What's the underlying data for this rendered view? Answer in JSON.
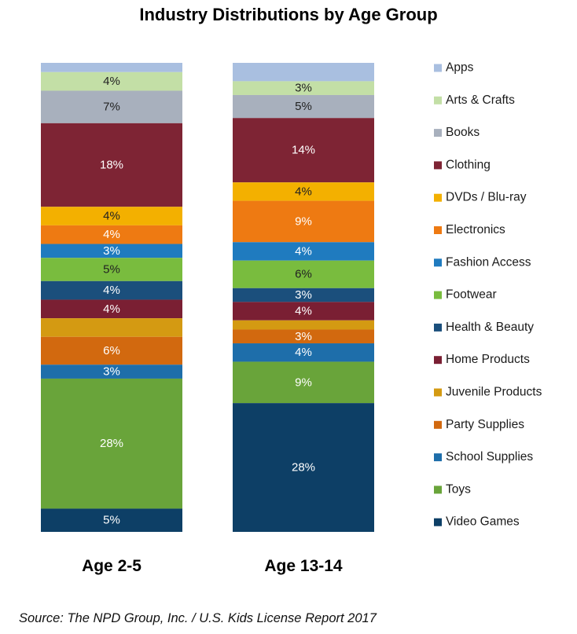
{
  "chart_data": {
    "type": "bar",
    "stacked": true,
    "normalized": true,
    "title": "Industry Distributions by Age Group",
    "categories": [
      "Age 2-5",
      "Age 13-14"
    ],
    "series": [
      {
        "name": "Apps",
        "color": "#a9bfe0",
        "values": [
          2,
          4
        ],
        "labels": [
          "",
          ""
        ]
      },
      {
        "name": "Arts & Crafts",
        "color": "#c3dfa6",
        "values": [
          4,
          3
        ],
        "labels": [
          "4%",
          "3%"
        ]
      },
      {
        "name": "Books",
        "color": "#a8b0bd",
        "values": [
          7,
          5
        ],
        "labels": [
          "7%",
          "5%"
        ]
      },
      {
        "name": "Clothing",
        "color": "#7e2434",
        "values": [
          18,
          14
        ],
        "labels": [
          "18%",
          "14%"
        ]
      },
      {
        "name": "DVDs / Blu-ray",
        "color": "#f3b000",
        "values": [
          4,
          4
        ],
        "labels": [
          "4%",
          "4%"
        ]
      },
      {
        "name": "Electronics",
        "color": "#ee7a12",
        "values": [
          4,
          9
        ],
        "labels": [
          "4%",
          "9%"
        ]
      },
      {
        "name": "Fashion Access",
        "color": "#1f7bbf",
        "values": [
          3,
          4
        ],
        "labels": [
          "3%",
          "4%"
        ]
      },
      {
        "name": "Footwear",
        "color": "#79bc3e",
        "values": [
          5,
          6
        ],
        "labels": [
          "5%",
          "6%"
        ]
      },
      {
        "name": "Health & Beauty",
        "color": "#1b4f7c",
        "values": [
          4,
          3
        ],
        "labels": [
          "4%",
          "3%"
        ]
      },
      {
        "name": "Home Products",
        "color": "#7a1f33",
        "values": [
          4,
          4
        ],
        "labels": [
          "4%",
          "4%"
        ]
      },
      {
        "name": "Juvenile Products",
        "color": "#d49a12",
        "values": [
          4,
          2
        ],
        "labels": [
          "",
          ""
        ]
      },
      {
        "name": "Party Supplies",
        "color": "#d2690f",
        "values": [
          6,
          3
        ],
        "labels": [
          "6%",
          "3%"
        ]
      },
      {
        "name": "School Supplies",
        "color": "#1e6eaa",
        "values": [
          3,
          4
        ],
        "labels": [
          "3%",
          "4%"
        ]
      },
      {
        "name": "Toys",
        "color": "#69a43a",
        "values": [
          28,
          9
        ],
        "labels": [
          "28%",
          "9%"
        ]
      },
      {
        "name": "Video Games",
        "color": "#0d3f66",
        "values": [
          5,
          28
        ],
        "labels": [
          "5%",
          "28%"
        ]
      }
    ],
    "legend": "right",
    "grid": false
  },
  "source": "Source:  The NPD Group, Inc. / U.S. Kids License Report 2017"
}
